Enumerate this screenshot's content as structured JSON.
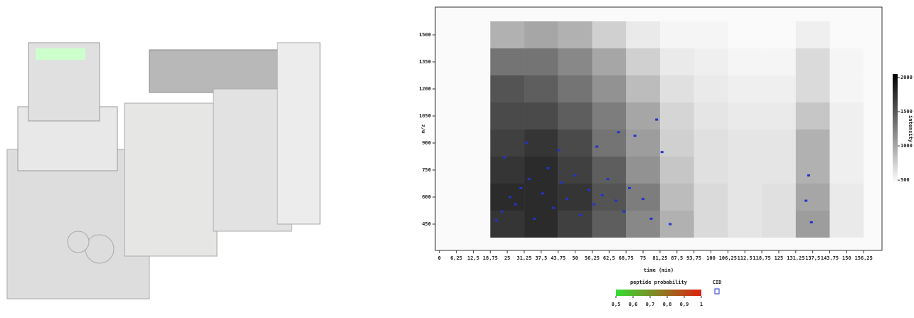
{
  "chart_data": {
    "type": "heatmap",
    "xlabel": "time (min)",
    "ylabel": "m/z",
    "xlim": [
      -1.5,
      163
    ],
    "ylim": [
      304,
      1654
    ],
    "xticks": [
      0,
      {
        "value": 6.25,
        "label": "6,25"
      },
      {
        "value": 12.5,
        "label": "12,5"
      },
      {
        "value": 18.75,
        "label": "18,75"
      },
      25,
      {
        "value": 31.25,
        "label": "31,25"
      },
      {
        "value": 37.5,
        "label": "37,5"
      },
      {
        "value": 43.75,
        "label": "43,75"
      },
      50,
      {
        "value": 56.25,
        "label": "56,25"
      },
      {
        "value": 62.5,
        "label": "62,5"
      },
      {
        "value": 68.75,
        "label": "68,75"
      },
      75,
      {
        "value": 81.25,
        "label": "81,25"
      },
      {
        "value": 87.5,
        "label": "87,5"
      },
      {
        "value": 93.75,
        "label": "93,75"
      },
      100,
      {
        "value": 106.25,
        "label": "106,25"
      },
      {
        "value": 112.5,
        "label": "112,5"
      },
      {
        "value": 118.75,
        "label": "118,75"
      },
      125,
      {
        "value": 131.25,
        "label": "131,25"
      },
      {
        "value": 137.5,
        "label": "137,5"
      },
      {
        "value": 143.75,
        "label": "143,75"
      },
      150,
      {
        "value": 156.25,
        "label": "156,25"
      }
    ],
    "yticks": [
      450,
      600,
      750,
      900,
      1050,
      1200,
      1350,
      1500
    ],
    "heatmap": {
      "x": [
        25,
        37.5,
        50,
        62.5,
        75,
        87.5,
        100,
        112.5,
        125,
        137.5,
        150
      ],
      "y": [
        450,
        600,
        750,
        900,
        1050,
        1200,
        1350,
        1500
      ],
      "z": [
        [
          1900,
          2000,
          1800,
          1500,
          1100,
          700,
          300,
          200,
          250,
          900,
          150
        ],
        [
          2000,
          2000,
          1900,
          1600,
          1200,
          600,
          300,
          200,
          250,
          800,
          150
        ],
        [
          1900,
          2000,
          1800,
          1500,
          1000,
          500,
          250,
          200,
          200,
          700,
          100
        ],
        [
          1800,
          1900,
          1700,
          1300,
          900,
          400,
          250,
          200,
          200,
          700,
          100
        ],
        [
          1700,
          1700,
          1500,
          1200,
          800,
          350,
          200,
          150,
          150,
          500,
          100
        ],
        [
          1600,
          1500,
          1300,
          1000,
          600,
          250,
          150,
          100,
          100,
          300,
          50
        ],
        [
          1300,
          1300,
          1100,
          800,
          400,
          150,
          100,
          50,
          50,
          300,
          50
        ],
        [
          700,
          800,
          700,
          400,
          150,
          50,
          50,
          0,
          0,
          100,
          0
        ]
      ]
    },
    "colorbar": {
      "label": "intensity",
      "lim": [
        450,
        2050
      ],
      "ticks": [
        500,
        1000,
        1500,
        2000
      ]
    },
    "legend": {
      "title": "peptide probability",
      "colors": [
        "#33dd33",
        "#dd2211"
      ],
      "lim": [
        0.5,
        1
      ],
      "ticks": [
        {
          "value": 0.5,
          "label": "0,5"
        },
        {
          "value": 0.6,
          "label": "0,6"
        },
        {
          "value": 0.7,
          "label": "0,7"
        },
        {
          "value": 0.8,
          "label": "0,8"
        },
        {
          "value": 0.9,
          "label": "0,9"
        },
        1
      ]
    },
    "series": [
      {
        "name": "CID",
        "color": "#2233cc",
        "x": [
          21,
          23,
          26,
          28,
          30,
          33,
          35,
          38,
          40,
          42,
          45,
          47,
          50,
          52,
          55,
          57,
          60,
          62,
          65,
          68,
          70,
          72,
          75,
          78,
          80,
          82,
          85,
          24,
          32,
          44,
          58,
          66,
          136,
          137,
          135
        ],
        "y": [
          470,
          520,
          600,
          560,
          650,
          700,
          480,
          620,
          760,
          540,
          680,
          590,
          720,
          500,
          640,
          560,
          610,
          700,
          580,
          520,
          650,
          940,
          590,
          480,
          1030,
          850,
          450,
          820,
          900,
          860,
          880,
          960,
          720,
          460,
          580
        ]
      }
    ]
  }
}
